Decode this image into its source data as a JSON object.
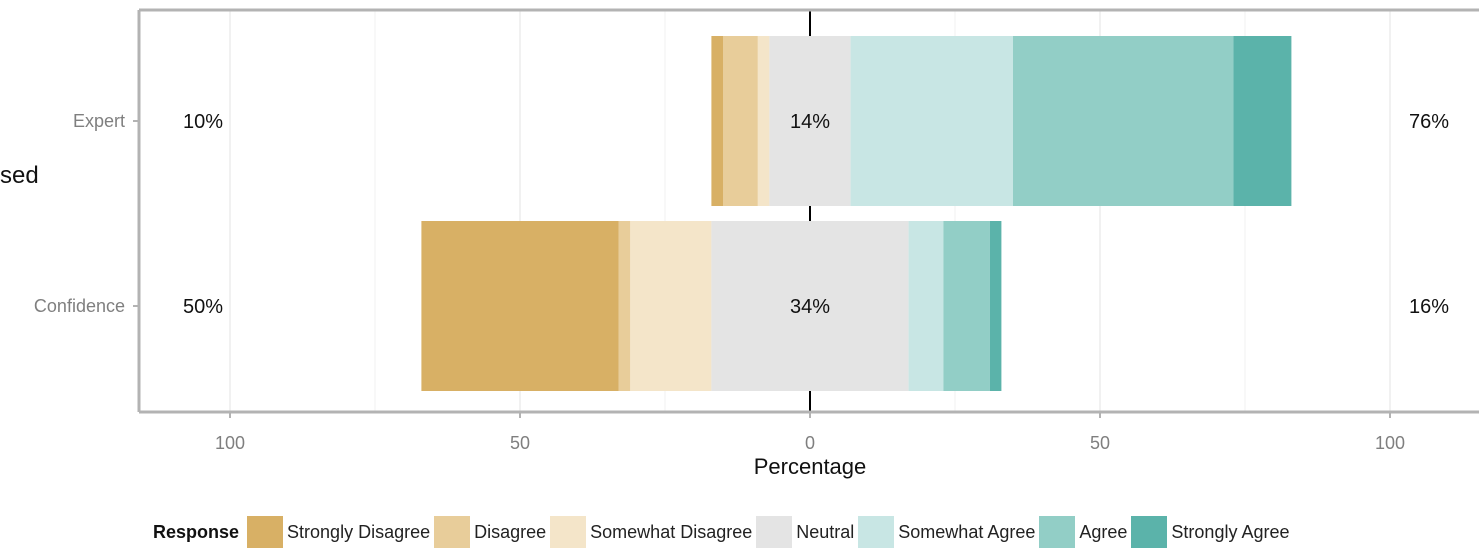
{
  "cut_text": "sed",
  "chart_data": {
    "type": "bar",
    "orientation": "horizontal",
    "stacked": "diverging",
    "xlabel": "Percentage",
    "xlim": [
      -100,
      100
    ],
    "x_ticks": [
      "100",
      "50",
      "0",
      "50",
      "100"
    ],
    "categories": [
      "Expert",
      "Confidence"
    ],
    "grid": true,
    "legend_position": "bottom",
    "series": [
      {
        "name": "Strongly Disagree",
        "color": "#d8b065",
        "values": [
          2,
          34
        ]
      },
      {
        "name": "Disagree",
        "color": "#e8cd9a",
        "values": [
          6,
          2
        ]
      },
      {
        "name": "Somewhat Disagree",
        "color": "#f4e5c9",
        "values": [
          2,
          14
        ]
      },
      {
        "name": "Neutral",
        "color": "#e4e4e4",
        "values": [
          14,
          34
        ]
      },
      {
        "name": "Somewhat Agree",
        "color": "#c8e6e4",
        "values": [
          28,
          6
        ]
      },
      {
        "name": "Agree",
        "color": "#92cec6",
        "values": [
          38,
          8
        ]
      },
      {
        "name": "Strongly Agree",
        "color": "#5bb3aa",
        "values": [
          10,
          2
        ]
      }
    ],
    "left_labels": [
      "10%",
      "50%"
    ],
    "center_labels": [
      "14%",
      "34%"
    ],
    "right_labels": [
      "76%",
      "16%"
    ]
  },
  "legend": {
    "title": "Response"
  }
}
